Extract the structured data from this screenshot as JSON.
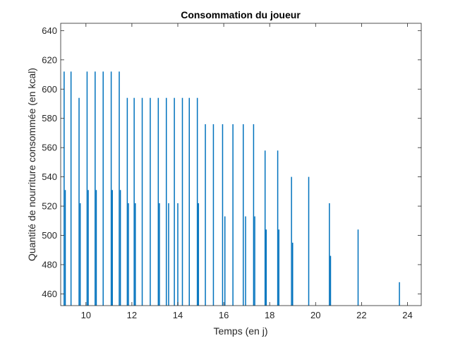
{
  "chart_data": {
    "type": "bar",
    "title": "Consommation du joueur",
    "xlabel": "Temps (en j)",
    "ylabel": "Quantité de nourriture consommée (en kcal)",
    "xlim": [
      8.9,
      24.6
    ],
    "ylim": [
      452,
      645
    ],
    "xticks": [
      10,
      12,
      14,
      16,
      18,
      20,
      22,
      24
    ],
    "yticks": [
      460,
      480,
      500,
      520,
      540,
      560,
      580,
      600,
      620,
      640
    ],
    "grid": false,
    "color": "#0072BD",
    "series": [
      {
        "x": [
          9.05,
          9.35,
          9.7,
          10.05,
          10.4,
          10.75,
          11.1,
          11.45,
          11.8,
          12.1,
          12.45,
          12.8,
          13.15,
          13.5,
          13.85,
          14.2,
          14.5,
          14.85,
          15.2,
          15.55,
          15.95,
          16.4,
          16.85,
          17.3,
          17.8,
          18.35,
          18.95,
          19.7,
          20.6,
          21.85,
          23.65
        ],
        "values": [
          612,
          612,
          594,
          612,
          612,
          612,
          612,
          612,
          594,
          594,
          594,
          594,
          594,
          594,
          594,
          594,
          594,
          594,
          576,
          576,
          576,
          576,
          576,
          576,
          558,
          558,
          540,
          540,
          522,
          504,
          468
        ]
      },
      {
        "x": [
          9.1,
          9.75,
          10.1,
          10.45,
          11.15,
          11.5,
          11.85,
          12.15,
          13.2,
          13.6,
          14.0,
          14.9,
          16.05,
          16.95,
          17.35,
          17.85,
          18.4,
          19.0,
          20.65
        ],
        "values": [
          531,
          522,
          531,
          531,
          531,
          531,
          522,
          522,
          522,
          522,
          522,
          522,
          513,
          513,
          513,
          504,
          504,
          495,
          486
        ]
      }
    ]
  }
}
